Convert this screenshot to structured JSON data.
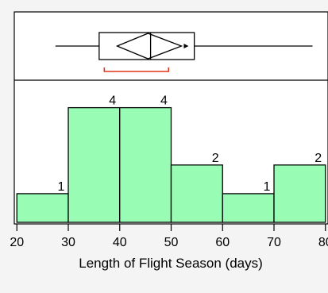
{
  "chart_data": {
    "type": "bar",
    "title": "",
    "xlabel": "Length of Flight Season (days)",
    "ylabel": "",
    "histogram": {
      "bins": [
        {
          "start": 20,
          "end": 30,
          "count": 1
        },
        {
          "start": 30,
          "end": 40,
          "count": 4
        },
        {
          "start": 40,
          "end": 50,
          "count": 4
        },
        {
          "start": 50,
          "end": 60,
          "count": 2
        },
        {
          "start": 60,
          "end": 70,
          "count": 1
        },
        {
          "start": 70,
          "end": 80,
          "count": 2
        }
      ],
      "count_labels": [
        "1",
        "4",
        "4",
        "2",
        "1",
        "2"
      ]
    },
    "x_ticks": [
      "20",
      "30",
      "40",
      "50",
      "60",
      "70",
      "80"
    ],
    "xlim": [
      19.5,
      80.5
    ],
    "ylim": [
      0,
      4.1
    ],
    "boxplot": {
      "whisker_low": 27.5,
      "q1": 36,
      "median": 46,
      "q3": 54.5,
      "whisker_high": 77.5,
      "mean": 45.5,
      "mean_ci": [
        39.5,
        52
      ],
      "shortest_half": [
        37,
        49.5
      ]
    },
    "colors": {
      "bar_fill": "#99fcb5",
      "bar_stroke": "#000000",
      "shortest_half": "#e0341b",
      "background": "#f4f4f4",
      "panel": "#ffffff"
    },
    "grid": false,
    "legend": "none"
  }
}
